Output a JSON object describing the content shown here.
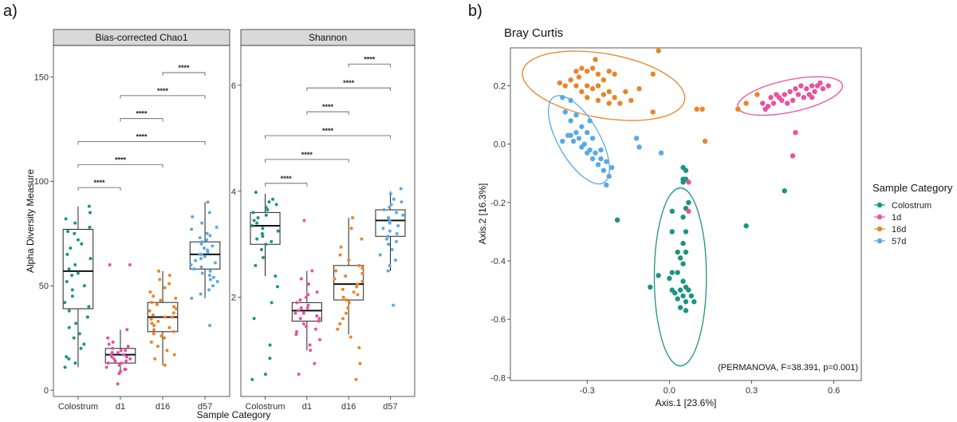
{
  "panel_labels": {
    "a": "a)",
    "b": "b)"
  },
  "colors": {
    "Colostrum": "#1b9482",
    "d1": "#e8529e",
    "d16": "#e8852a",
    "d57": "#5aa9e6",
    "1d": "#e8529e",
    "16d": "#e8852a",
    "57d": "#5aa9e6"
  },
  "chart_data": [
    {
      "type": "box",
      "facet": "Bias-corrected Chao1",
      "categories": [
        "Colostrum",
        "d1",
        "d16",
        "d57"
      ],
      "xlabel": "Sample Category",
      "ylabel": "Alpha Diversity Measure",
      "ylim": [
        -3,
        165
      ],
      "yticks": [
        0,
        50,
        100,
        150
      ],
      "boxes": [
        {
          "q1": 39,
          "median": 57,
          "q3": 77,
          "lo": 11,
          "hi": 88
        },
        {
          "q1": 13,
          "median": 17,
          "q3": 20,
          "lo": 8,
          "hi": 29
        },
        {
          "q1": 28,
          "median": 35,
          "q3": 42,
          "lo": 12,
          "hi": 57
        },
        {
          "q1": 58,
          "median": 65,
          "q3": 71,
          "lo": 44,
          "hi": 90
        }
      ],
      "points": [
        [
          88,
          85,
          82,
          80,
          78,
          76,
          75,
          72,
          70,
          68,
          65,
          63,
          60,
          58,
          56,
          55,
          52,
          50,
          48,
          45,
          42,
          40,
          38,
          35,
          32,
          30,
          27,
          25,
          22,
          20,
          16,
          15,
          13,
          11
        ],
        [
          60,
          60,
          29,
          25,
          23,
          22,
          21,
          20,
          19,
          19,
          18,
          18,
          17,
          17,
          16,
          16,
          15,
          15,
          14,
          14,
          13,
          13,
          12,
          11,
          10,
          10,
          9,
          8,
          3
        ],
        [
          57,
          55,
          53,
          51,
          49,
          47,
          45,
          44,
          43,
          42,
          41,
          40,
          39,
          38,
          37,
          36,
          35,
          35,
          34,
          33,
          32,
          31,
          30,
          29,
          28,
          27,
          26,
          25,
          23,
          21,
          19,
          17,
          15,
          12
        ],
        [
          90,
          85,
          83,
          80,
          78,
          77,
          75,
          74,
          73,
          72,
          71,
          70,
          69,
          68,
          67,
          66,
          65,
          65,
          64,
          63,
          62,
          61,
          60,
          59,
          58,
          57,
          56,
          55,
          54,
          53,
          52,
          50,
          48,
          46,
          44,
          31
        ]
      ],
      "significance": [
        {
          "from": 0,
          "to": 1,
          "y": 97,
          "label": "****"
        },
        {
          "from": 0,
          "to": 2,
          "y": 108,
          "label": "****"
        },
        {
          "from": 0,
          "to": 3,
          "y": 119,
          "label": "****"
        },
        {
          "from": 1,
          "to": 2,
          "y": 130,
          "label": "****"
        },
        {
          "from": 1,
          "to": 3,
          "y": 141,
          "label": "****"
        },
        {
          "from": 2,
          "to": 3,
          "y": 152,
          "label": "****"
        }
      ]
    },
    {
      "type": "box",
      "facet": "Shannon",
      "categories": [
        "Colostrum",
        "d1",
        "d16",
        "d57"
      ],
      "xlabel": "Sample Category",
      "ylabel": "Alpha Diversity Measure",
      "ylim": [
        0.13,
        6.75
      ],
      "yticks": [
        2,
        4,
        6
      ],
      "boxes": [
        {
          "q1": 3.0,
          "median": 3.35,
          "q3": 3.6,
          "lo": 2.4,
          "hi": 3.95
        },
        {
          "q1": 1.55,
          "median": 1.75,
          "q3": 1.9,
          "lo": 1.0,
          "hi": 2.5
        },
        {
          "q1": 1.95,
          "median": 2.25,
          "q3": 2.6,
          "lo": 1.3,
          "hi": 3.5
        },
        {
          "q1": 3.15,
          "median": 3.45,
          "q3": 3.65,
          "lo": 2.5,
          "hi": 4.0
        }
      ],
      "points": [
        [
          3.98,
          3.85,
          3.8,
          3.75,
          3.7,
          3.65,
          3.6,
          3.55,
          3.5,
          3.45,
          3.4,
          3.35,
          3.3,
          3.25,
          3.2,
          3.15,
          3.1,
          3.05,
          3.0,
          2.9,
          2.75,
          2.6,
          2.4,
          2.2,
          1.9,
          1.6,
          1.1,
          0.85,
          0.55,
          0.45
        ],
        [
          3.45,
          2.5,
          2.35,
          2.25,
          2.1,
          2.05,
          2.0,
          1.95,
          1.9,
          1.85,
          1.8,
          1.8,
          1.75,
          1.7,
          1.7,
          1.65,
          1.6,
          1.6,
          1.55,
          1.5,
          1.45,
          1.4,
          1.35,
          1.3,
          1.2,
          1.1,
          1.0,
          0.75,
          0.55
        ],
        [
          3.5,
          3.3,
          3.1,
          2.95,
          2.8,
          2.7,
          2.6,
          2.55,
          2.5,
          2.45,
          2.4,
          2.35,
          2.3,
          2.25,
          2.2,
          2.15,
          2.1,
          2.05,
          2.0,
          1.95,
          1.9,
          1.8,
          1.7,
          1.6,
          1.5,
          1.4,
          1.25,
          1.05,
          0.75,
          0.45
        ],
        [
          4.05,
          3.95,
          3.85,
          3.8,
          3.75,
          3.7,
          3.65,
          3.6,
          3.55,
          3.5,
          3.45,
          3.4,
          3.35,
          3.3,
          3.25,
          3.2,
          3.15,
          3.1,
          3.05,
          3.0,
          2.9,
          2.8,
          2.7,
          2.6,
          2.5,
          1.85
        ]
      ],
      "significance": [
        {
          "from": 0,
          "to": 1,
          "y": 4.15,
          "label": "****"
        },
        {
          "from": 0,
          "to": 2,
          "y": 4.6,
          "label": "****"
        },
        {
          "from": 0,
          "to": 3,
          "y": 5.05,
          "label": "****"
        },
        {
          "from": 1,
          "to": 2,
          "y": 5.5,
          "label": "****"
        },
        {
          "from": 1,
          "to": 3,
          "y": 5.95,
          "label": "****"
        },
        {
          "from": 2,
          "to": 3,
          "y": 6.4,
          "label": "****"
        }
      ]
    },
    {
      "type": "scatter",
      "title": "Bray Curtis",
      "xlabel": "Axis.1   [23.6%]",
      "ylabel": "Axis.2   [16.3%]",
      "xlim": [
        -0.58,
        0.7
      ],
      "ylim": [
        -0.81,
        0.33
      ],
      "xticks": [
        -0.3,
        0.0,
        0.3,
        0.6
      ],
      "yticks": [
        -0.8,
        -0.6,
        -0.4,
        -0.2,
        0.0,
        0.2
      ],
      "annotation": "(PERMANOVA, F=38.391, p=0.001)",
      "legend": {
        "title": "Sample Category",
        "position": "right",
        "entries": [
          "Colostrum",
          "1d",
          "16d",
          "57d"
        ]
      },
      "ellipses": {
        "Colostrum": {
          "cx": 0.04,
          "cy": -0.455,
          "rx": 0.095,
          "ry": 0.305,
          "angle": 0
        },
        "1d": {
          "cx": 0.44,
          "cy": 0.165,
          "rx": 0.195,
          "ry": 0.055,
          "angle": 12
        },
        "16d": {
          "cx": -0.24,
          "cy": 0.2,
          "rx": 0.3,
          "ry": 0.11,
          "angle": -10
        },
        "57d": {
          "cx": -0.33,
          "cy": 0.015,
          "rx": 0.075,
          "ry": 0.17,
          "angle": 30
        }
      },
      "series": [
        {
          "name": "Colostrum",
          "points": [
            [
              0.05,
              -0.08
            ],
            [
              0.06,
              -0.09
            ],
            [
              0.05,
              -0.12
            ],
            [
              0.06,
              -0.12
            ],
            [
              0.05,
              -0.13
            ],
            [
              0.07,
              -0.2
            ],
            [
              0.06,
              -0.22
            ],
            [
              0.01,
              -0.23
            ],
            [
              0.05,
              -0.25
            ],
            [
              0.01,
              -0.3
            ],
            [
              0.06,
              -0.3
            ],
            [
              0.05,
              -0.34
            ],
            [
              0.03,
              -0.37
            ],
            [
              0.06,
              -0.37
            ],
            [
              0.04,
              -0.39
            ],
            [
              0.05,
              -0.41
            ],
            [
              0.01,
              -0.44
            ],
            [
              0.03,
              -0.44
            ],
            [
              -0.04,
              -0.45
            ],
            [
              0.0,
              -0.46
            ],
            [
              0.05,
              -0.47
            ],
            [
              0.06,
              -0.49
            ],
            [
              0.01,
              -0.5
            ],
            [
              0.04,
              -0.5
            ],
            [
              0.07,
              -0.5
            ],
            [
              0.02,
              -0.51
            ],
            [
              0.05,
              -0.52
            ],
            [
              0.08,
              -0.52
            ],
            [
              0.03,
              -0.53
            ],
            [
              0.06,
              -0.54
            ],
            [
              0.09,
              -0.54
            ],
            [
              0.04,
              -0.56
            ],
            [
              0.06,
              -0.57
            ],
            [
              -0.07,
              -0.49
            ],
            [
              -0.19,
              -0.26
            ],
            [
              0.42,
              -0.16
            ],
            [
              0.28,
              -0.28
            ]
          ]
        },
        {
          "name": "1d",
          "points": [
            [
              0.36,
              0.13
            ],
            [
              0.38,
              0.14
            ],
            [
              0.4,
              0.16
            ],
            [
              0.42,
              0.17
            ],
            [
              0.44,
              0.18
            ],
            [
              0.46,
              0.19
            ],
            [
              0.48,
              0.2
            ],
            [
              0.5,
              0.19
            ],
            [
              0.52,
              0.2
            ],
            [
              0.54,
              0.2
            ],
            [
              0.55,
              0.21
            ],
            [
              0.53,
              0.18
            ],
            [
              0.51,
              0.17
            ],
            [
              0.49,
              0.16
            ],
            [
              0.47,
              0.17
            ],
            [
              0.45,
              0.15
            ],
            [
              0.43,
              0.14
            ],
            [
              0.41,
              0.15
            ],
            [
              0.39,
              0.17
            ],
            [
              0.37,
              0.16
            ],
            [
              0.35,
              0.12
            ],
            [
              0.34,
              0.14
            ],
            [
              0.56,
              0.19
            ],
            [
              0.58,
              0.2
            ],
            [
              0.52,
              0.16
            ],
            [
              0.46,
              0.04
            ],
            [
              0.45,
              -0.04
            ],
            [
              0.07,
              -0.13
            ],
            [
              0.07,
              -0.23
            ]
          ]
        },
        {
          "name": "16d",
          "points": [
            [
              -0.36,
              0.22
            ],
            [
              -0.34,
              0.25
            ],
            [
              -0.32,
              0.26
            ],
            [
              -0.3,
              0.25
            ],
            [
              -0.28,
              0.26
            ],
            [
              -0.26,
              0.24
            ],
            [
              -0.24,
              0.22
            ],
            [
              -0.22,
              0.25
            ],
            [
              -0.2,
              0.24
            ],
            [
              -0.34,
              0.2
            ],
            [
              -0.32,
              0.18
            ],
            [
              -0.3,
              0.2
            ],
            [
              -0.28,
              0.19
            ],
            [
              -0.26,
              0.2
            ],
            [
              -0.24,
              0.17
            ],
            [
              -0.22,
              0.18
            ],
            [
              -0.2,
              0.16
            ],
            [
              -0.18,
              0.14
            ],
            [
              -0.16,
              0.18
            ],
            [
              -0.14,
              0.15
            ],
            [
              -0.3,
              0.16
            ],
            [
              -0.26,
              0.15
            ],
            [
              -0.22,
              0.14
            ],
            [
              -0.38,
              0.2
            ],
            [
              -0.4,
              0.21
            ],
            [
              -0.33,
              0.23
            ],
            [
              -0.27,
              0.29
            ],
            [
              -0.11,
              0.19
            ],
            [
              -0.06,
              0.24
            ],
            [
              -0.04,
              0.32
            ],
            [
              -0.06,
              0.11
            ],
            [
              0.1,
              0.12
            ],
            [
              0.12,
              0.12
            ],
            [
              0.13,
              0.01
            ],
            [
              0.25,
              0.12
            ],
            [
              0.28,
              0.14
            ],
            [
              0.32,
              0.17
            ]
          ]
        },
        {
          "name": "57d",
          "points": [
            [
              -0.39,
              0.16
            ],
            [
              -0.36,
              0.15
            ],
            [
              -0.38,
              0.11
            ],
            [
              -0.34,
              0.1
            ],
            [
              -0.36,
              0.08
            ],
            [
              -0.32,
              0.06
            ],
            [
              -0.34,
              0.04
            ],
            [
              -0.36,
              0.03
            ],
            [
              -0.33,
              0.02
            ],
            [
              -0.3,
              0.04
            ],
            [
              -0.28,
              0.02
            ],
            [
              -0.31,
              0.0
            ],
            [
              -0.29,
              -0.02
            ],
            [
              -0.27,
              -0.03
            ],
            [
              -0.25,
              -0.05
            ],
            [
              -0.23,
              -0.06
            ],
            [
              -0.26,
              -0.07
            ],
            [
              -0.24,
              -0.09
            ],
            [
              -0.22,
              -0.11
            ],
            [
              -0.28,
              -0.05
            ],
            [
              -0.3,
              -0.03
            ],
            [
              -0.32,
              -0.01
            ],
            [
              -0.35,
              0.01
            ],
            [
              -0.37,
              0.03
            ],
            [
              -0.25,
              -0.02
            ],
            [
              -0.21,
              -0.08
            ],
            [
              -0.23,
              -0.14
            ],
            [
              -0.29,
              0.08
            ],
            [
              -0.39,
              0.01
            ],
            [
              -0.12,
              0.02
            ],
            [
              -0.11,
              -0.01
            ],
            [
              -0.03,
              -0.03
            ]
          ]
        }
      ]
    }
  ]
}
